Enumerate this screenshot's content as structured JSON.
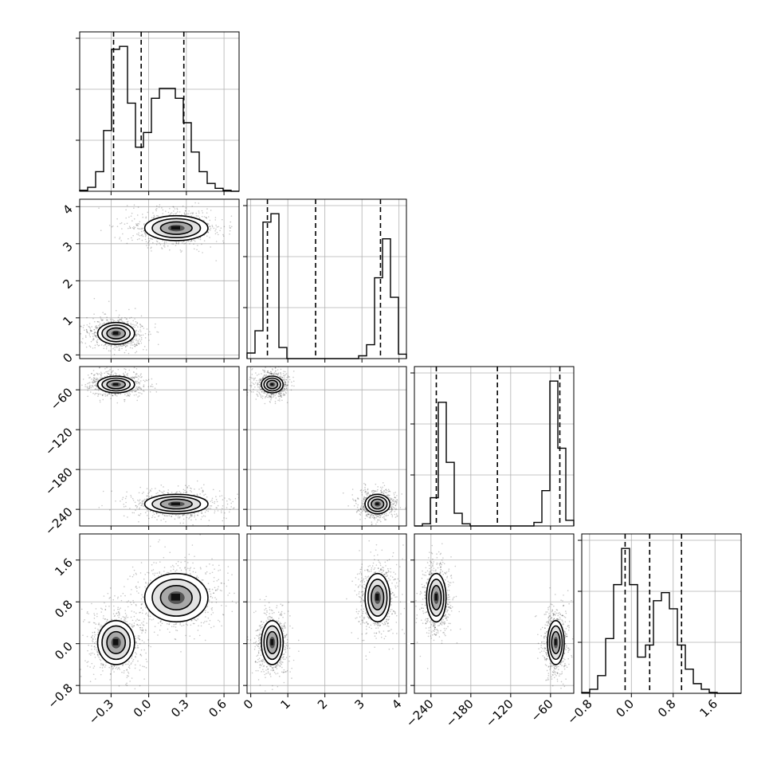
{
  "chart_data": {
    "type": "corner",
    "parameters": [
      {
        "key": "p0",
        "range": [
          -0.55,
          0.72
        ],
        "ticks": [
          -0.3,
          0.0,
          0.3,
          0.6
        ],
        "tick_labels": [
          "−0.3",
          "0.0",
          "0.3",
          "0.6"
        ],
        "quantiles": [
          -0.28,
          -0.06,
          0.28
        ]
      },
      {
        "key": "p1",
        "range": [
          -0.1,
          4.2
        ],
        "ticks": [
          0,
          1,
          2,
          3,
          4
        ],
        "tick_labels": [
          "0",
          "1",
          "2",
          "3",
          "4"
        ],
        "quantiles": [
          0.45,
          1.75,
          3.5
        ]
      },
      {
        "key": "p2",
        "range": [
          -265,
          -25
        ],
        "ticks": [
          -240,
          -180,
          -120,
          -60
        ],
        "tick_labels": [
          "−240",
          "−180",
          "−120",
          "−60"
        ],
        "quantiles": [
          -232,
          -140,
          -46
        ]
      },
      {
        "key": "p3",
        "range": [
          -0.95,
          2.1
        ],
        "ticks": [
          -0.8,
          0.0,
          0.8,
          1.6
        ],
        "tick_labels": [
          "−0.8",
          "0.0",
          "0.8",
          "1.6"
        ],
        "quantiles": [
          -0.12,
          0.35,
          0.96
        ]
      }
    ],
    "histograms": [
      {
        "param": 0,
        "edges_start": -0.55,
        "bin_width": 0.0635,
        "counts": [
          1,
          4,
          20,
          62,
          145,
          148,
          90,
          45,
          60,
          95,
          105,
          105,
          95,
          70,
          40,
          20,
          8,
          3,
          1,
          0
        ]
      },
      {
        "param": 1,
        "edges_start": -0.1,
        "bin_width": 0.215,
        "counts": [
          10,
          50,
          245,
          260,
          20,
          0,
          0,
          0,
          0,
          0,
          0,
          0,
          0,
          0,
          5,
          25,
          145,
          215,
          110,
          8
        ]
      },
      {
        "param": 2,
        "edges_start": -265,
        "bin_width": 12,
        "counts": [
          0,
          3,
          40,
          175,
          90,
          18,
          3,
          0,
          0,
          0,
          0,
          0,
          0,
          0,
          0,
          5,
          50,
          205,
          110,
          8
        ]
      },
      {
        "param": 3,
        "edges_start": -0.95,
        "bin_width": 0.1525,
        "counts": [
          1,
          5,
          22,
          68,
          135,
          180,
          135,
          45,
          60,
          115,
          125,
          105,
          60,
          30,
          12,
          5,
          1,
          0,
          0,
          0
        ]
      }
    ],
    "modes": [
      {
        "center": [
          -0.26,
          0.58,
          -52,
          0.02
        ],
        "spread": [
          0.07,
          0.14,
          6,
          0.2
        ]
      },
      {
        "center": [
          0.22,
          3.42,
          -232,
          0.88
        ],
        "spread": [
          0.12,
          0.16,
          7,
          0.22
        ]
      }
    ],
    "quantile_levels": [
      0.16,
      0.5,
      0.84
    ],
    "grid": true
  }
}
